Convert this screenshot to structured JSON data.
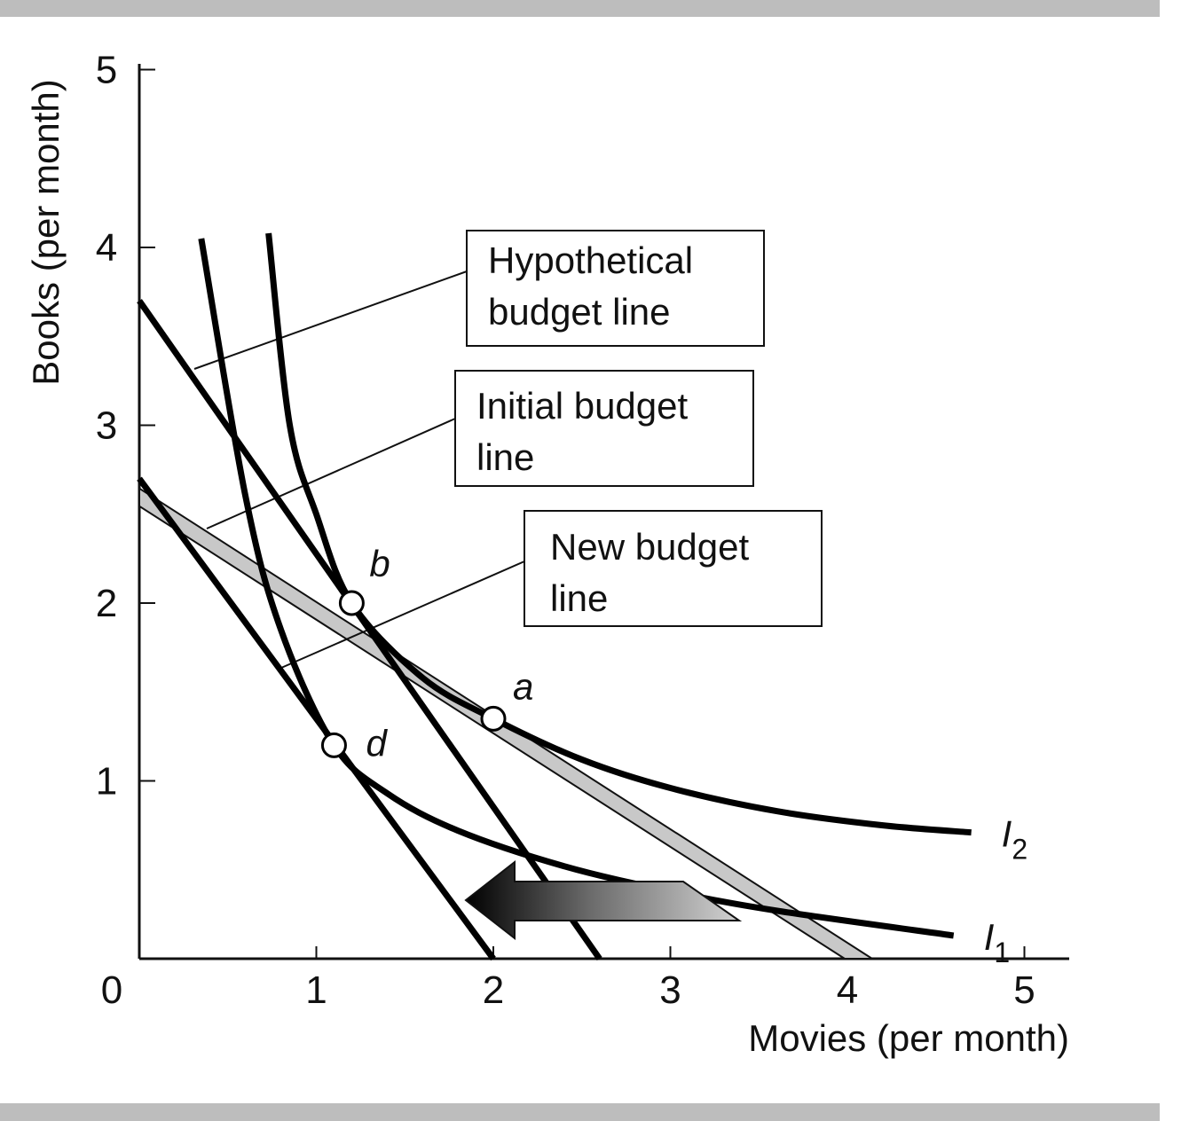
{
  "chart_data": {
    "type": "line",
    "xlabel": "Movies (per month)",
    "ylabel": "Books (per month)",
    "xlim": [
      0,
      5
    ],
    "ylim": [
      0,
      5
    ],
    "x_ticks": [
      "0",
      "1",
      "2",
      "3",
      "4",
      "5"
    ],
    "y_ticks": [
      "1",
      "2",
      "3",
      "4",
      "5"
    ],
    "grid": false,
    "budget_lines": [
      {
        "name": "Hypothetical budget line",
        "x": [
          0,
          2.6
        ],
        "y": [
          3.7,
          0
        ]
      },
      {
        "name": "Initial budget line",
        "x": [
          0,
          2.0
        ],
        "y": [
          2.7,
          0
        ]
      },
      {
        "name": "New budget line",
        "x": [
          0,
          4.0
        ],
        "y": [
          2.6,
          0
        ]
      }
    ],
    "indifference_curves": [
      {
        "name": "I",
        "subscript": "1",
        "x": [
          0.35,
          0.6,
          0.8,
          1.1,
          1.4,
          1.8,
          2.4,
          3.0,
          3.6,
          4.6
        ],
        "y": [
          4.05,
          2.6,
          1.85,
          1.2,
          0.93,
          0.72,
          0.52,
          0.38,
          0.27,
          0.13
        ]
      },
      {
        "name": "I",
        "subscript": "2",
        "x": [
          0.73,
          0.85,
          1.0,
          1.2,
          1.6,
          2.0,
          2.5,
          3.0,
          3.6,
          4.2,
          4.7
        ],
        "y": [
          4.08,
          3.0,
          2.5,
          2.0,
          1.58,
          1.35,
          1.12,
          0.96,
          0.83,
          0.75,
          0.71
        ]
      }
    ],
    "points": [
      {
        "label": "b",
        "x": 1.2,
        "y": 2.0
      },
      {
        "label": "a",
        "x": 2.0,
        "y": 1.35
      },
      {
        "label": "d",
        "x": 1.1,
        "y": 1.2
      }
    ],
    "arrow": {
      "from_x": 3.4,
      "to_x": 1.9,
      "y": 0.28
    }
  }
}
